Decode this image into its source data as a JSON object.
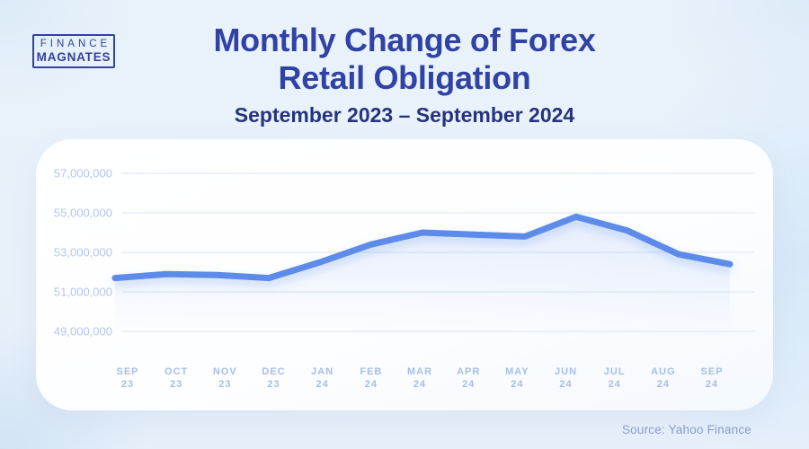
{
  "logo": {
    "top": "FINANCE",
    "bottom": "MAGNATES"
  },
  "header": {
    "title_line1": "Monthly Change of Forex",
    "title_line2": "Retail Obligation",
    "subtitle": "September 2023 – September 2024"
  },
  "footer": {
    "source": "Source: Yahoo Finance"
  },
  "colors": {
    "line": "#5b8be9",
    "line_glow": "#5b8be9",
    "title": "#3142a5",
    "subtitle": "#27337c",
    "logo": "#33429c",
    "y_axis_label": "#b3c6ee",
    "x_axis_label": "#a7bde8",
    "gridline": "#e0ebf8",
    "source_text": "#8d9dc7",
    "background": "#e9f2fb",
    "card": "#ffffff"
  },
  "chart_data": {
    "type": "line",
    "title": "Monthly Change of Forex Retail Obligation",
    "subtitle": "September 2023 – September 2024",
    "categories": [
      "SEP 23",
      "OCT 23",
      "NOV 23",
      "DEC 23",
      "JAN 24",
      "FEB 24",
      "MAR 24",
      "APR 24",
      "MAY 24",
      "JUN 24",
      "JUL 24",
      "AUG 24",
      "SEP 24"
    ],
    "values": [
      51700000,
      51900000,
      51850000,
      51700000,
      52500000,
      53400000,
      54000000,
      53900000,
      53800000,
      54800000,
      54100000,
      52900000,
      52400000
    ],
    "y_ticks": [
      49000000,
      51000000,
      53000000,
      55000000,
      57000000
    ],
    "ylim": [
      49000000,
      57000000
    ],
    "xlabel": "",
    "ylabel": "",
    "grid": "horizontal",
    "legend": "none",
    "source": "Yahoo Finance"
  }
}
